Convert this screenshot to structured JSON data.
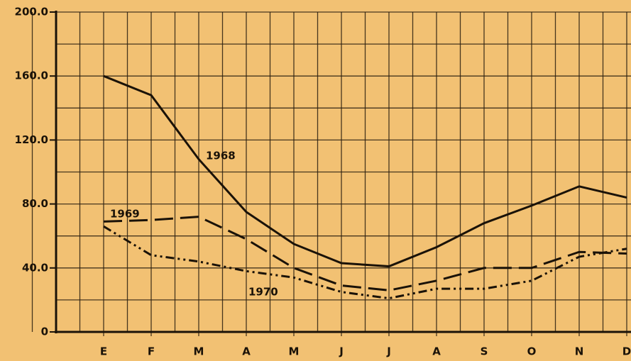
{
  "chart_data": {
    "type": "line",
    "categories": [
      "E",
      "F",
      "M",
      "A",
      "M",
      "J",
      "J",
      "A",
      "S",
      "O",
      "N",
      "D"
    ],
    "series": [
      {
        "name": "1968",
        "color": "#1a1208",
        "dash": "solid",
        "values": [
          160,
          148,
          108,
          75,
          55,
          43,
          41,
          53,
          68,
          79,
          91,
          84
        ]
      },
      {
        "name": "1969",
        "color": "#1a1208",
        "dash": "dash",
        "values": [
          69,
          70,
          72,
          58,
          40,
          29,
          26,
          32,
          40,
          40,
          50,
          49
        ]
      },
      {
        "name": "1970",
        "color": "#1a1208",
        "dash": "dash-dot-dot",
        "values": [
          66,
          48,
          44,
          38,
          34,
          25,
          21,
          27,
          27,
          32,
          47,
          52
        ]
      }
    ],
    "ylim": [
      0,
      200
    ],
    "yticks": [
      0,
      {
        "value": 40,
        "label": "40.0"
      },
      {
        "value": 80,
        "label": "80.0"
      },
      {
        "value": 120,
        "label": "120.0"
      },
      {
        "value": 160,
        "label": "160.0"
      },
      {
        "value": 200,
        "label": "200.0"
      }
    ],
    "grid": true
  }
}
